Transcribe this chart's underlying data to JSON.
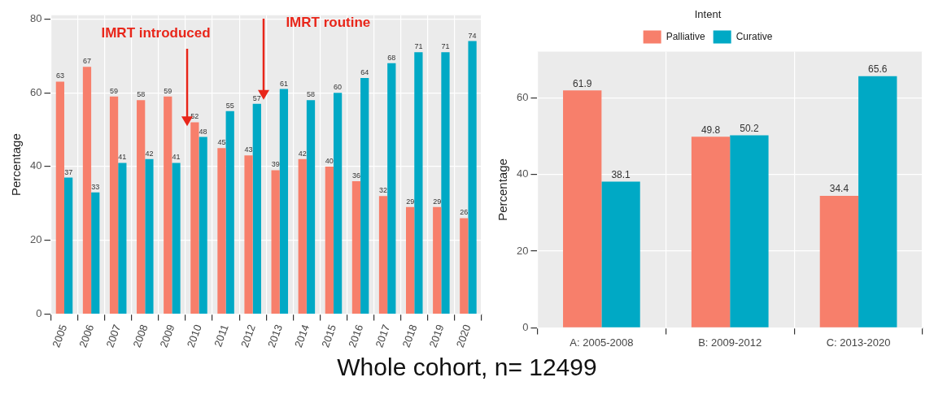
{
  "chart_data": [
    {
      "type": "bar",
      "ylabel": "Percentage",
      "categories": [
        "2005",
        "2006",
        "2007",
        "2008",
        "2009",
        "2010",
        "2011",
        "2012",
        "2013",
        "2014",
        "2015",
        "2016",
        "2017",
        "2018",
        "2019",
        "2020"
      ],
      "series": [
        {
          "color": "#f77f6b",
          "values": [
            63,
            67,
            59,
            58,
            59,
            52,
            45,
            43,
            39,
            42,
            40,
            36,
            32,
            29,
            29,
            26
          ]
        },
        {
          "color": "#00a9c5",
          "values": [
            37,
            33,
            41,
            42,
            41,
            48,
            55,
            57,
            61,
            58,
            60,
            64,
            68,
            71,
            71,
            74
          ]
        }
      ],
      "ylim": [
        0,
        81
      ],
      "yticks": [
        0,
        20,
        40,
        60,
        80
      ],
      "grid": true,
      "legend": false,
      "data_labels": true,
      "annotations": [
        "IMRT introduced",
        "IMRT routine",
        "Whole cohort, n= 12499"
      ]
    },
    {
      "type": "bar",
      "ylabel": "Percentage",
      "categories": [
        "A: 2005-2008",
        "B: 2009-2012",
        "C: 2013-2020"
      ],
      "legend_title": "Intent",
      "series": [
        {
          "name": "Palliative",
          "color": "#f77f6b",
          "values": [
            61.9,
            49.8,
            34.4
          ]
        },
        {
          "name": "Curative",
          "color": "#00a9c5",
          "values": [
            38.1,
            50.2,
            65.6
          ]
        }
      ],
      "ylim": [
        0,
        72
      ],
      "yticks": [
        0,
        20,
        40,
        60
      ],
      "grid": true,
      "legend": "top",
      "data_labels": true
    }
  ]
}
